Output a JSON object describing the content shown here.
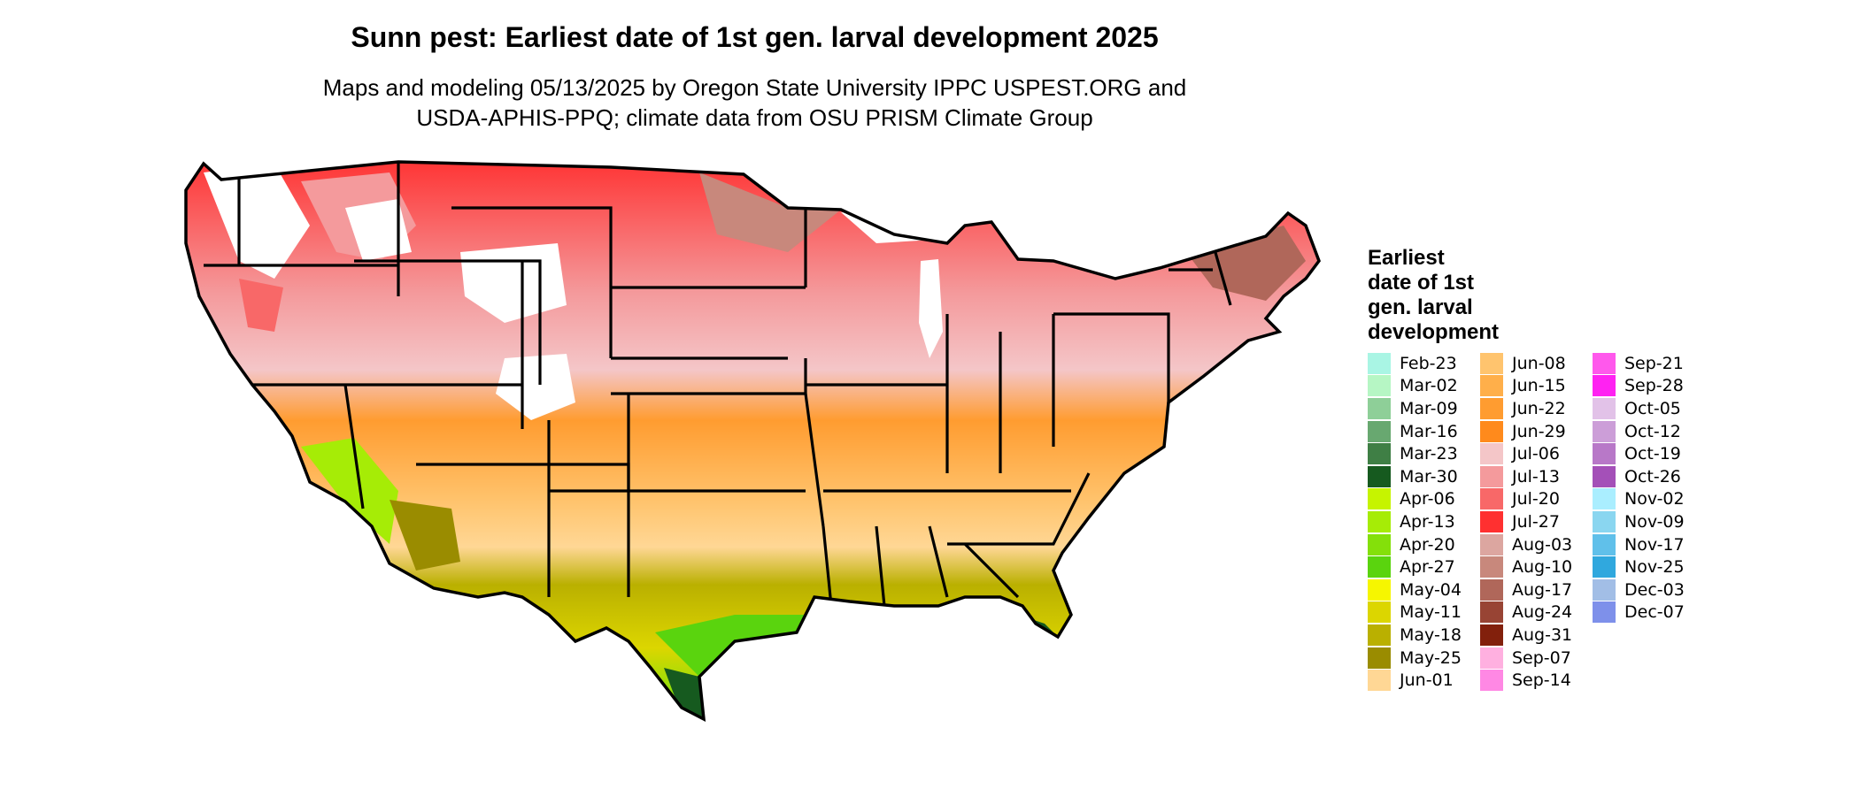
{
  "title": "Sunn pest: Earliest date of 1st gen. larval development 2025",
  "subtitle_line1": "Maps and modeling 05/13/2025 by Oregon State University IPPC USPEST.ORG and",
  "subtitle_line2": "USDA-APHIS-PPQ; climate data from OSU PRISM Climate Group",
  "legend": {
    "title_lines": [
      "Earliest",
      "date of 1st",
      "gen. larval",
      "development"
    ],
    "columns": [
      [
        {
          "label": "Feb-23",
          "color": "#a9f5e4"
        },
        {
          "label": "Mar-02",
          "color": "#b6f6c4"
        },
        {
          "label": "Mar-09",
          "color": "#8ecf98"
        },
        {
          "label": "Mar-16",
          "color": "#68a870"
        },
        {
          "label": "Mar-23",
          "color": "#3f7f45"
        },
        {
          "label": "Mar-30",
          "color": "#165a1f"
        },
        {
          "label": "Apr-06",
          "color": "#c6f400"
        },
        {
          "label": "Apr-13",
          "color": "#a6ec06"
        },
        {
          "label": "Apr-20",
          "color": "#84e00a"
        },
        {
          "label": "Apr-27",
          "color": "#5ad40e"
        },
        {
          "label": "May-04",
          "color": "#f6f600"
        },
        {
          "label": "May-11",
          "color": "#dcd600"
        },
        {
          "label": "May-18",
          "color": "#bab000"
        },
        {
          "label": "May-25",
          "color": "#9a8c00"
        },
        {
          "label": "Jun-01",
          "color": "#ffd795"
        }
      ],
      [
        {
          "label": "Jun-08",
          "color": "#ffc46e"
        },
        {
          "label": "Jun-15",
          "color": "#ffaf4a"
        },
        {
          "label": "Jun-22",
          "color": "#ff9c30"
        },
        {
          "label": "Jun-29",
          "color": "#ff8a1c"
        },
        {
          "label": "Jul-06",
          "color": "#f4c6c8"
        },
        {
          "label": "Jul-13",
          "color": "#f49a9c"
        },
        {
          "label": "Jul-20",
          "color": "#f86868"
        },
        {
          "label": "Jul-27",
          "color": "#ff3030"
        },
        {
          "label": "Aug-03",
          "color": "#dca6a0"
        },
        {
          "label": "Aug-10",
          "color": "#c8887c"
        },
        {
          "label": "Aug-17",
          "color": "#b0675a"
        },
        {
          "label": "Aug-24",
          "color": "#984434"
        },
        {
          "label": "Aug-31",
          "color": "#82200c"
        },
        {
          "label": "Sep-07",
          "color": "#ffb0e0"
        },
        {
          "label": "Sep-14",
          "color": "#ff88e4"
        }
      ],
      [
        {
          "label": "Sep-21",
          "color": "#ff58ec"
        },
        {
          "label": "Sep-28",
          "color": "#ff22f2"
        },
        {
          "label": "Oct-05",
          "color": "#e2c2e8"
        },
        {
          "label": "Oct-12",
          "color": "#cc9ed8"
        },
        {
          "label": "Oct-19",
          "color": "#b878c8"
        },
        {
          "label": "Oct-26",
          "color": "#a450b8"
        },
        {
          "label": "Nov-02",
          "color": "#aaeeff"
        },
        {
          "label": "Nov-09",
          "color": "#8ad6f0"
        },
        {
          "label": "Nov-17",
          "color": "#60c0ea"
        },
        {
          "label": "Nov-25",
          "color": "#30a8de"
        },
        {
          "label": "Dec-03",
          "color": "#a2bee6"
        },
        {
          "label": "Dec-07",
          "color": "#7e90ea"
        }
      ]
    ]
  }
}
